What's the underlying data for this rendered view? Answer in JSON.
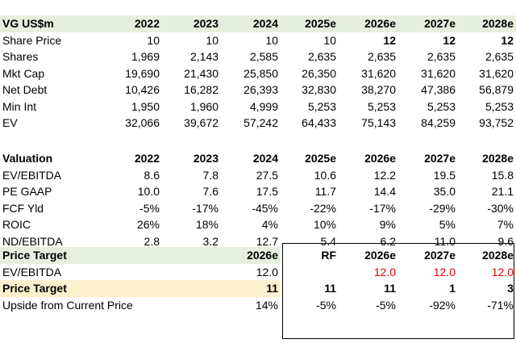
{
  "section1": {
    "header": [
      "VG US$m",
      "2022",
      "2023",
      "2024",
      "2025e",
      "2026e",
      "2027e",
      "2028e"
    ],
    "rows": [
      {
        "label": "Share Price",
        "values": [
          "10",
          "10",
          "10",
          "10",
          "12",
          "12",
          "12"
        ],
        "bold_from": 4
      },
      {
        "label": "Shares",
        "values": [
          "1,969",
          "2,143",
          "2,585",
          "2,635",
          "2,635",
          "2,635",
          "2,635"
        ]
      },
      {
        "label": "Mkt Cap",
        "values": [
          "19,690",
          "21,430",
          "25,850",
          "26,350",
          "31,620",
          "31,620",
          "31,620"
        ]
      },
      {
        "label": "Net Debt",
        "values": [
          "10,426",
          "16,282",
          "26,393",
          "32,830",
          "38,270",
          "47,386",
          "56,879"
        ]
      },
      {
        "label": "Min Int",
        "values": [
          "1,950",
          "1,960",
          "4,999",
          "5,253",
          "5,253",
          "5,253",
          "5,253"
        ]
      },
      {
        "label": "EV",
        "values": [
          "32,066",
          "39,672",
          "57,242",
          "64,433",
          "75,143",
          "84,259",
          "93,752"
        ]
      }
    ]
  },
  "section2": {
    "header": [
      "Valuation",
      "2022",
      "2023",
      "2024",
      "2025e",
      "2026e",
      "2027e",
      "2028e"
    ],
    "rows": [
      {
        "label": "EV/EBITDA",
        "values": [
          "8.6",
          "7.8",
          "27.5",
          "10.6",
          "12.2",
          "19.5",
          "15.8"
        ]
      },
      {
        "label": "PE GAAP",
        "values": [
          "10.0",
          "7.6",
          "17.5",
          "11.7",
          "14.4",
          "35.0",
          "21.1"
        ]
      },
      {
        "label": "FCF Yld",
        "values": [
          "-5%",
          "-17%",
          "-45%",
          "-22%",
          "-17%",
          "-29%",
          "-30%"
        ]
      },
      {
        "label": "ROIC",
        "values": [
          "26%",
          "18%",
          "4%",
          "10%",
          "9%",
          "5%",
          "7%"
        ]
      },
      {
        "label": "ND/EBITDA",
        "values": [
          "2.8",
          "3.2",
          "12.7",
          "5.4",
          "6.2",
          "11.0",
          "9.6"
        ]
      }
    ]
  },
  "section3": {
    "header": {
      "label": "Price Target",
      "year": "2026e",
      "rf": "RF",
      "y1": "2026e",
      "y2": "2027e",
      "y3": "2028e"
    },
    "ev_row": {
      "label": "EV/EBITDA",
      "value": "12.0",
      "rf1": "12.0",
      "rf2": "12.0",
      "rf3": "12.0"
    },
    "pt_row": {
      "label": "Price Target",
      "value": "11",
      "rf1": "11",
      "rf2": "1",
      "rf3": "3"
    },
    "upside_row": {
      "label": "Upside from Current Price",
      "value": "14%",
      "rf1": "-5%",
      "rf2": "-92%",
      "rf3": "-71%"
    }
  },
  "colors": {
    "header_green": "#e6efdb",
    "highlight_yellow": "#fdf0cc",
    "red": "#e00000"
  }
}
